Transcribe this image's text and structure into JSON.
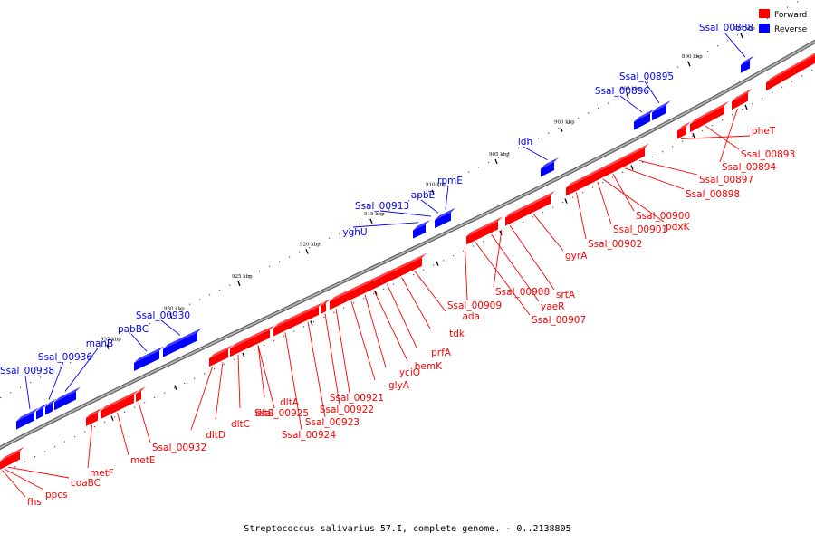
{
  "caption": "Streptococcus salivarius 57.I, complete genome. - 0..2138805",
  "legend": [
    {
      "label": "Forward",
      "color": "#ff0000"
    },
    {
      "label": "Reverse",
      "color": "#0000ff"
    }
  ],
  "colors": {
    "forward": "#ff0000",
    "reverse": "#0000ff",
    "backbone": "#888888"
  },
  "kbp_ticks": [
    "885 kbp",
    "890 kbp",
    "895 kbp",
    "900 kbp",
    "905 kbp",
    "910 kbp",
    "915 kbp",
    "920 kbp",
    "925 kbp",
    "930 kbp",
    "935 kbp"
  ],
  "reverse_genes": [
    {
      "name": "Ssal_00888"
    },
    {
      "name": "Ssal_00895"
    },
    {
      "name": "Ssal_00896"
    },
    {
      "name": "ldh"
    },
    {
      "name": "rpmE"
    },
    {
      "name": "apbE"
    },
    {
      "name": "Ssal_00913"
    },
    {
      "name": "yghU"
    },
    {
      "name": "Ssal_00930"
    },
    {
      "name": "pabBC"
    },
    {
      "name": "manB"
    },
    {
      "name": "Ssal_00936"
    },
    {
      "name": "Ssal_00938"
    }
  ],
  "forward_genes": [
    {
      "name": "pheT"
    },
    {
      "name": "Ssal_00893"
    },
    {
      "name": "Ssal_00894"
    },
    {
      "name": "Ssal_00897"
    },
    {
      "name": "Ssal_00898"
    },
    {
      "name": "Ssal_00900"
    },
    {
      "name": "pdxK"
    },
    {
      "name": "Ssal_00901"
    },
    {
      "name": "Ssal_00902"
    },
    {
      "name": "gyrA"
    },
    {
      "name": "srtA"
    },
    {
      "name": "Ssal_00908"
    },
    {
      "name": "yaeR"
    },
    {
      "name": "Ssal_00907"
    },
    {
      "name": "Ssal_00909"
    },
    {
      "name": "ada"
    },
    {
      "name": "tdk"
    },
    {
      "name": "prfA"
    },
    {
      "name": "hemK"
    },
    {
      "name": "yciO"
    },
    {
      "name": "glyA"
    },
    {
      "name": "Ssal_00921"
    },
    {
      "name": "Ssal_00922"
    },
    {
      "name": "Ssal_00923"
    },
    {
      "name": "Ssal_00924"
    },
    {
      "name": "Ssal_00925"
    },
    {
      "name": "dltA"
    },
    {
      "name": "dltB"
    },
    {
      "name": "dltC"
    },
    {
      "name": "dltD"
    },
    {
      "name": "Ssal_00932"
    },
    {
      "name": "metE"
    },
    {
      "name": "metF"
    },
    {
      "name": "coaBC"
    },
    {
      "name": "ppcs"
    },
    {
      "name": "fhs"
    }
  ]
}
